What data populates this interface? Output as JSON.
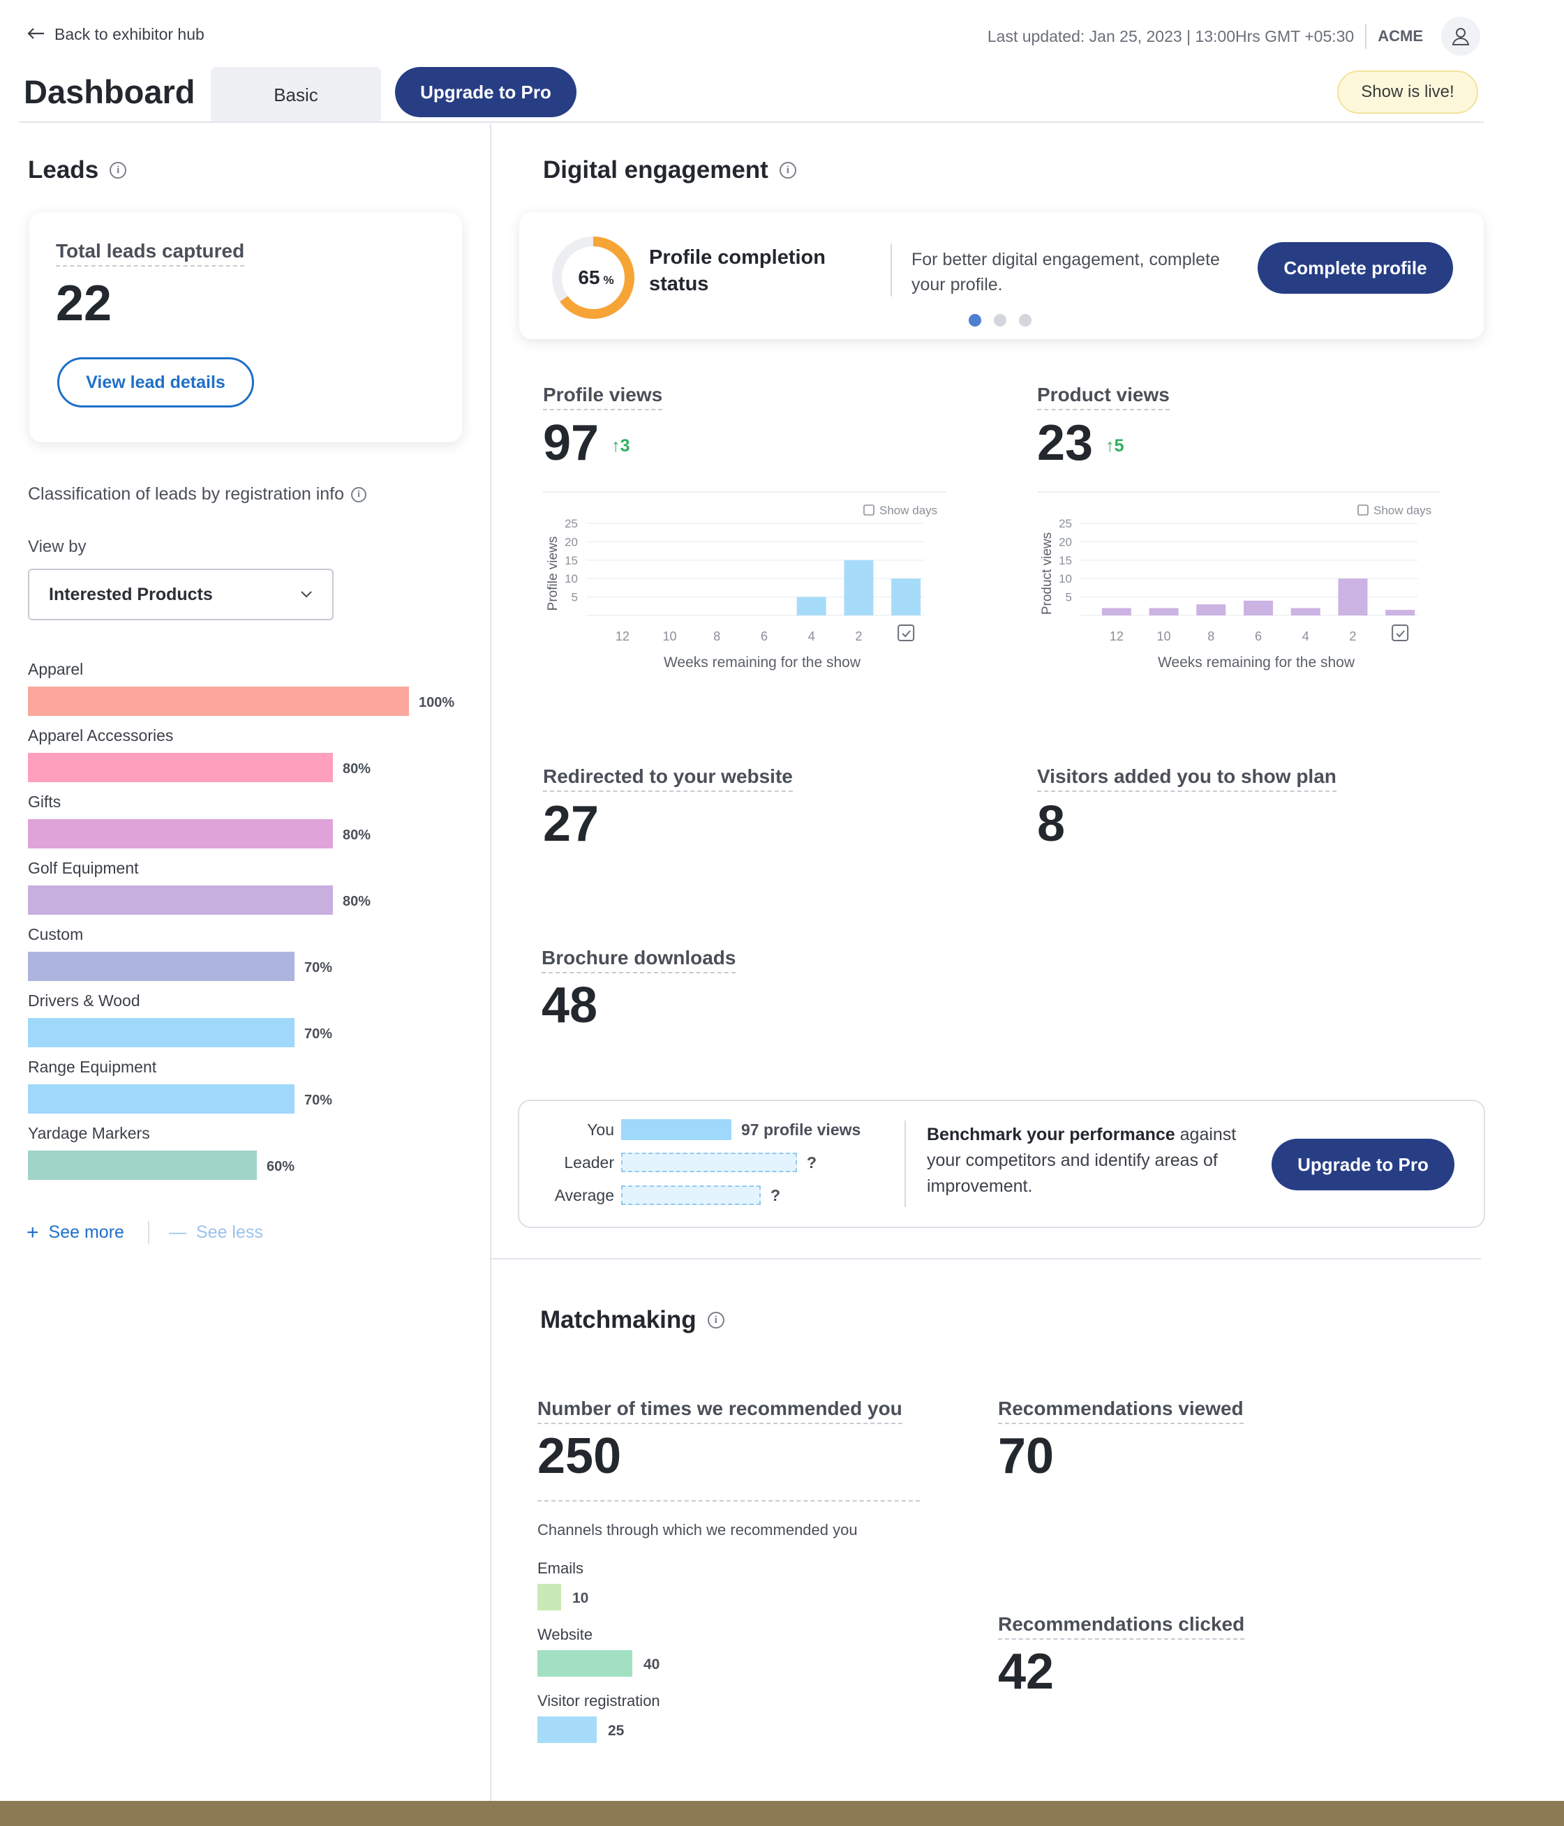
{
  "header": {
    "back_label": "Back to exhibitor hub",
    "last_updated": "Last updated: Jan 25, 2023 | 13:00Hrs GMT +05:30",
    "brand": "ACME",
    "title": "Dashboard",
    "tab_basic": "Basic",
    "upgrade_label": "Upgrade to Pro",
    "live_badge": "Show is live!"
  },
  "leads": {
    "title": "Leads",
    "total_label": "Total leads captured",
    "total_value": "22",
    "view_details": "View lead details",
    "classification_title": "Classification of leads by registration info",
    "view_by_label": "View by",
    "view_by_value": "Interested Products",
    "categories": [
      {
        "label": "Apparel",
        "pct": "100%",
        "value": 100,
        "color": "#fba79c"
      },
      {
        "label": "Apparel Accessories",
        "pct": "80%",
        "value": 80,
        "color": "#fea0bb"
      },
      {
        "label": "Gifts",
        "pct": "80%",
        "value": 80,
        "color": "#dfa3da"
      },
      {
        "label": "Golf Equipment",
        "pct": "80%",
        "value": 80,
        "color": "#c7afdf"
      },
      {
        "label": "Custom",
        "pct": "70%",
        "value": 70,
        "color": "#adb5df"
      },
      {
        "label": "Drivers & Wood",
        "pct": "70%",
        "value": 70,
        "color": "#9fd8fb"
      },
      {
        "label": "Range Equipment",
        "pct": "70%",
        "value": 70,
        "color": "#9fd8fb"
      },
      {
        "label": "Yardage Markers",
        "pct": "60%",
        "value": 60,
        "color": "#9fd4c9"
      }
    ],
    "see_more": "See more",
    "see_less": "See less"
  },
  "engagement": {
    "title": "Digital engagement",
    "profile_completion": {
      "value": "65",
      "pct_sign": "%",
      "fraction": 0.65,
      "label": "Profile completion status",
      "message": "For better digital engagement, complete your profile.",
      "button": "Complete profile"
    },
    "profile_views": {
      "label": "Profile views",
      "value": "97",
      "delta": "3"
    },
    "product_views": {
      "label": "Product views",
      "value": "23",
      "delta": "5"
    },
    "redirected": {
      "label": "Redirected to your website",
      "value": "27"
    },
    "show_plan": {
      "label": "Visitors added you to show plan",
      "value": "8"
    },
    "brochure": {
      "label": "Brochure downloads",
      "value": "48"
    },
    "benchmark": {
      "you_label": "You",
      "you_value": "97 profile views",
      "leader_label": "Leader",
      "leader_value": "?",
      "average_label": "Average",
      "average_value": "?",
      "message_bold": "Benchmark your performance",
      "message_rest": " against your competitors and identify areas of improvement.",
      "button": "Upgrade to Pro"
    }
  },
  "chart_data": [
    {
      "type": "bar",
      "title": "",
      "ylabel": "Profile views",
      "xlabel": "Weeks remaining for the show",
      "legend_note": "Show days",
      "categories": [
        "12",
        "10",
        "8",
        "6",
        "4",
        "2",
        "Show days"
      ],
      "values": [
        0,
        0,
        0,
        0,
        5,
        15,
        10
      ],
      "ylim": [
        0,
        25
      ],
      "yticks": [
        5,
        10,
        15,
        20,
        25
      ],
      "color": "#a6dcfa"
    },
    {
      "type": "bar",
      "title": "",
      "ylabel": "Product views",
      "xlabel": "Weeks remaining for the show",
      "legend_note": "Show days",
      "categories": [
        "12",
        "10",
        "8",
        "6",
        "4",
        "2",
        "Show days"
      ],
      "values": [
        2,
        2,
        3,
        4,
        2,
        10,
        1.5
      ],
      "ylim": [
        0,
        25
      ],
      "yticks": [
        5,
        10,
        15,
        20,
        25
      ],
      "color": "#cbb3e3"
    }
  ],
  "matchmaking": {
    "title": "Matchmaking",
    "recommended_label": "Number of times we recommended you",
    "recommended_value": "250",
    "viewed_label": "Recommendations viewed",
    "viewed_value": "70",
    "clicked_label": "Recommendations clicked",
    "clicked_value": "42",
    "channels_title": "Channels through which we recommended you",
    "channels": [
      {
        "label": "Emails",
        "value": 10,
        "display": "10",
        "color": "#c9eab6"
      },
      {
        "label": "Website",
        "value": 40,
        "display": "40",
        "color": "#a2e0c2"
      },
      {
        "label": "Visitor registration",
        "value": 25,
        "display": "25",
        "color": "#a6dcfa"
      }
    ]
  }
}
